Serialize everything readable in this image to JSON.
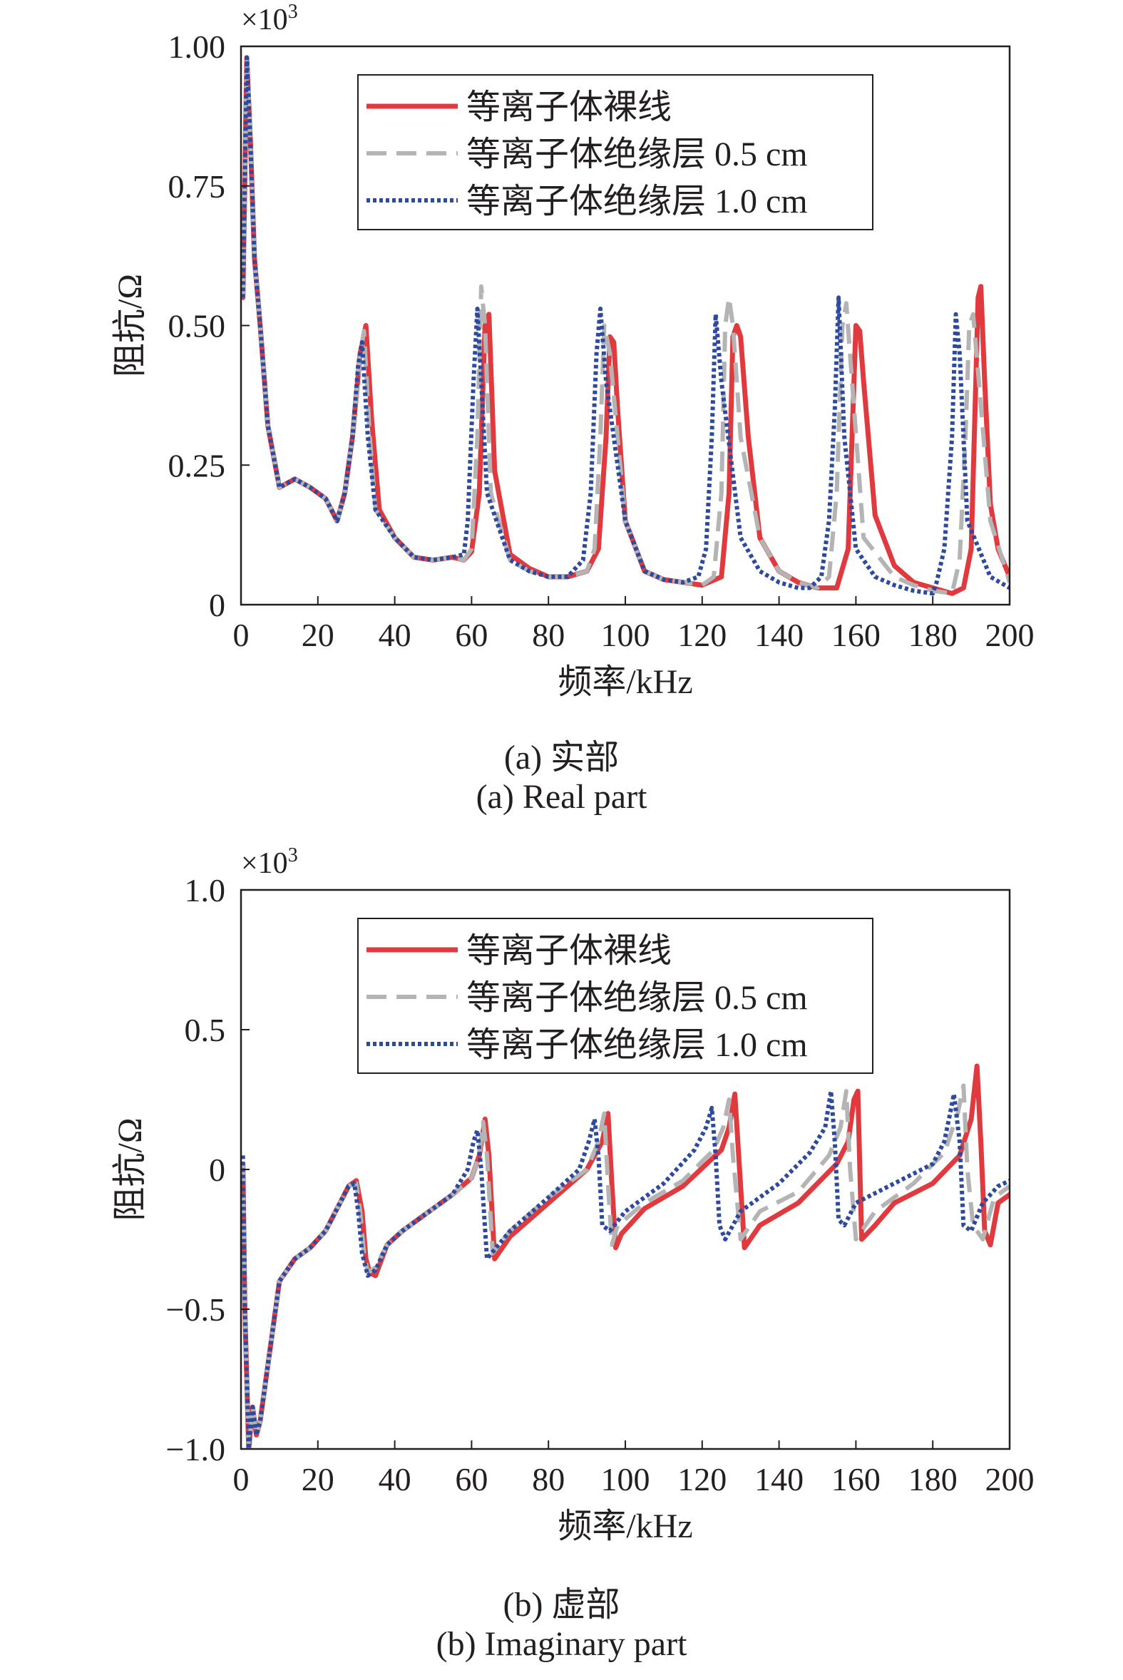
{
  "chart_data": [
    {
      "type": "line",
      "panel": "a",
      "caption_zh": "(a) 实部",
      "caption_en": "(a) Real part",
      "xlabel": "频率/kHz",
      "ylabel": "阻抗/Ω",
      "scale_label": "×10",
      "scale_exp": "3",
      "xlim": [
        0,
        200
      ],
      "ylim": [
        0,
        1.0
      ],
      "xticks": [
        "0",
        "20",
        "40",
        "60",
        "80",
        "100",
        "120",
        "140",
        "160",
        "180",
        "200"
      ],
      "yticks": [
        {
          "v": 1.0,
          "label": "1.00"
        },
        {
          "v": 0.75,
          "label": "0.75"
        },
        {
          "v": 0.5,
          "label": "0.50"
        },
        {
          "v": 0.25,
          "label": "0.25"
        },
        {
          "v": 0,
          "label": "0"
        }
      ],
      "legend_position": "top-right",
      "series": [
        {
          "name": "等离子体裸线",
          "color": "#e03a3e",
          "style": "solid",
          "x": [
            0.5,
            1.5,
            2.5,
            3.5,
            5,
            7,
            10,
            14,
            18,
            22,
            25,
            27,
            29,
            31,
            32.5,
            34,
            36,
            40,
            45,
            50,
            55,
            58,
            60,
            62,
            63.5,
            64.5,
            66,
            70,
            75,
            80,
            85,
            90,
            93,
            95,
            96,
            97,
            98,
            100,
            105,
            110,
            115,
            120,
            125,
            127,
            128,
            129,
            130,
            132,
            135,
            140,
            145,
            150,
            155,
            158,
            159,
            160,
            161,
            162,
            165,
            170,
            175,
            180,
            185,
            188,
            190,
            191,
            191.8,
            192.5,
            193.5,
            195,
            197,
            200
          ],
          "y": [
            0.55,
            0.98,
            0.82,
            0.62,
            0.5,
            0.32,
            0.21,
            0.225,
            0.21,
            0.19,
            0.15,
            0.2,
            0.3,
            0.45,
            0.5,
            0.33,
            0.17,
            0.12,
            0.085,
            0.08,
            0.085,
            0.08,
            0.095,
            0.2,
            0.5,
            0.52,
            0.24,
            0.09,
            0.065,
            0.05,
            0.05,
            0.06,
            0.1,
            0.3,
            0.48,
            0.47,
            0.35,
            0.15,
            0.06,
            0.045,
            0.04,
            0.035,
            0.05,
            0.2,
            0.48,
            0.5,
            0.48,
            0.3,
            0.12,
            0.06,
            0.04,
            0.03,
            0.03,
            0.1,
            0.3,
            0.5,
            0.49,
            0.4,
            0.16,
            0.07,
            0.04,
            0.03,
            0.02,
            0.03,
            0.1,
            0.35,
            0.55,
            0.57,
            0.4,
            0.18,
            0.1,
            0.05
          ]
        },
        {
          "name": "等离子体绝缘层 0.5 cm",
          "color": "#b4b4b4",
          "style": "dashed",
          "x": [
            0.5,
            1.5,
            2.5,
            3.5,
            5,
            7,
            10,
            14,
            18,
            22,
            25,
            27,
            29,
            31,
            32,
            33.5,
            35,
            40,
            45,
            50,
            55,
            58,
            60,
            61.5,
            62.5,
            63.5,
            65,
            70,
            75,
            80,
            85,
            90,
            92,
            93.5,
            94.5,
            96,
            100,
            105,
            110,
            115,
            120,
            123,
            125,
            126,
            127,
            128,
            130,
            135,
            140,
            145,
            150,
            153,
            155,
            156.5,
            157.5,
            159,
            162,
            170,
            175,
            180,
            185,
            187,
            188.5,
            189.5,
            190.5,
            192,
            195,
            200
          ],
          "y": [
            0.55,
            0.98,
            0.82,
            0.62,
            0.5,
            0.32,
            0.21,
            0.225,
            0.21,
            0.19,
            0.15,
            0.2,
            0.3,
            0.45,
            0.49,
            0.3,
            0.17,
            0.12,
            0.085,
            0.08,
            0.085,
            0.08,
            0.1,
            0.3,
            0.57,
            0.5,
            0.2,
            0.08,
            0.06,
            0.05,
            0.05,
            0.06,
            0.1,
            0.3,
            0.5,
            0.45,
            0.15,
            0.06,
            0.045,
            0.04,
            0.035,
            0.05,
            0.2,
            0.5,
            0.55,
            0.5,
            0.3,
            0.12,
            0.06,
            0.04,
            0.03,
            0.05,
            0.2,
            0.5,
            0.54,
            0.4,
            0.12,
            0.05,
            0.035,
            0.025,
            0.02,
            0.08,
            0.3,
            0.5,
            0.52,
            0.4,
            0.15,
            0.04
          ]
        },
        {
          "name": "等离子体绝缘层 1.0 cm",
          "color": "#2e4a9e",
          "style": "dotted",
          "x": [
            0.5,
            1.5,
            2.5,
            3.5,
            5,
            7,
            10,
            14,
            18,
            22,
            25,
            27,
            29,
            30.5,
            31.5,
            33,
            35,
            40,
            45,
            50,
            55,
            58,
            59,
            60.5,
            61.5,
            62.5,
            64,
            70,
            75,
            80,
            85,
            89,
            91,
            92.5,
            93.5,
            95,
            100,
            105,
            110,
            115,
            119,
            121,
            122.5,
            123.5,
            125,
            130,
            135,
            140,
            145,
            148,
            151,
            153,
            154.5,
            155.5,
            157,
            160,
            165,
            170,
            175,
            180,
            181,
            183,
            185,
            186,
            187,
            189,
            195,
            200
          ],
          "y": [
            0.55,
            0.98,
            0.82,
            0.62,
            0.5,
            0.32,
            0.21,
            0.225,
            0.21,
            0.19,
            0.15,
            0.2,
            0.3,
            0.43,
            0.47,
            0.3,
            0.17,
            0.12,
            0.085,
            0.08,
            0.085,
            0.09,
            0.15,
            0.4,
            0.53,
            0.4,
            0.2,
            0.08,
            0.06,
            0.05,
            0.05,
            0.08,
            0.2,
            0.45,
            0.53,
            0.4,
            0.15,
            0.06,
            0.045,
            0.04,
            0.05,
            0.1,
            0.3,
            0.52,
            0.4,
            0.12,
            0.06,
            0.04,
            0.03,
            0.03,
            0.05,
            0.15,
            0.35,
            0.55,
            0.3,
            0.1,
            0.05,
            0.035,
            0.025,
            0.02,
            0.04,
            0.1,
            0.3,
            0.52,
            0.45,
            0.15,
            0.05,
            0.03
          ]
        }
      ]
    },
    {
      "type": "line",
      "panel": "b",
      "caption_zh": "(b) 虚部",
      "caption_en": "(b) Imaginary part",
      "xlabel": "频率/kHz",
      "ylabel": "阻抗/Ω",
      "scale_label": "×10",
      "scale_exp": "3",
      "xlim": [
        0,
        200
      ],
      "ylim": [
        -1.0,
        1.0
      ],
      "xticks": [
        "0",
        "20",
        "40",
        "60",
        "80",
        "100",
        "120",
        "140",
        "160",
        "180",
        "200"
      ],
      "yticks": [
        {
          "v": 1.0,
          "label": "1.0"
        },
        {
          "v": 0.5,
          "label": "0.5"
        },
        {
          "v": 0,
          "label": "0"
        },
        {
          "v": -0.5,
          "label": "−0.5"
        },
        {
          "v": -1.0,
          "label": "−1.0"
        }
      ],
      "legend_position": "top-right",
      "series": [
        {
          "name": "等离子体裸线",
          "color": "#e03a3e",
          "style": "solid",
          "x": [
            0.5,
            1,
            2,
            3,
            4,
            5,
            7,
            10,
            14,
            18,
            22,
            25,
            28,
            30,
            31.5,
            32.5,
            33.5,
            35,
            38,
            42,
            48,
            55,
            60,
            62,
            63.5,
            64.5,
            66,
            70,
            80,
            90,
            94,
            95.5,
            96.5,
            97.5,
            99,
            105,
            115,
            125,
            127,
            128.5,
            129.5,
            131,
            135,
            145,
            155,
            158,
            159.5,
            160.5,
            161.5,
            165,
            170,
            180,
            187,
            190,
            191.5,
            192.5,
            193.5,
            195,
            197,
            200
          ],
          "y": [
            0.02,
            -0.5,
            -1.0,
            -0.85,
            -0.95,
            -0.9,
            -0.7,
            -0.4,
            -0.32,
            -0.28,
            -0.22,
            -0.14,
            -0.06,
            -0.04,
            -0.15,
            -0.32,
            -0.37,
            -0.38,
            -0.27,
            -0.22,
            -0.16,
            -0.09,
            -0.03,
            0.05,
            0.18,
            0.05,
            -0.32,
            -0.24,
            -0.12,
            0.0,
            0.1,
            0.2,
            -0.05,
            -0.28,
            -0.23,
            -0.14,
            -0.06,
            0.07,
            0.15,
            0.27,
            0.05,
            -0.28,
            -0.2,
            -0.12,
            0.02,
            0.1,
            0.25,
            0.28,
            -0.25,
            -0.2,
            -0.12,
            -0.05,
            0.05,
            0.18,
            0.37,
            0.1,
            -0.22,
            -0.27,
            -0.12,
            -0.09
          ]
        },
        {
          "name": "等离子体绝缘层 0.5 cm",
          "color": "#b4b4b4",
          "style": "dashed",
          "x": [
            0.5,
            1,
            2,
            3,
            4,
            5,
            7,
            10,
            14,
            18,
            22,
            25,
            28,
            30,
            31,
            32,
            33,
            35,
            38,
            42,
            48,
            55,
            60,
            62,
            63,
            64,
            65.5,
            70,
            80,
            90,
            93,
            94.5,
            95.5,
            96.5,
            98,
            105,
            115,
            123,
            125.5,
            127,
            128,
            130,
            135,
            145,
            153,
            156,
            157.5,
            158.5,
            160,
            165,
            175,
            183,
            186.5,
            188,
            189,
            190.5,
            193,
            196,
            200
          ],
          "y": [
            0.02,
            -0.5,
            -1.0,
            -0.85,
            -0.95,
            -0.9,
            -0.7,
            -0.4,
            -0.32,
            -0.28,
            -0.22,
            -0.14,
            -0.06,
            -0.05,
            -0.15,
            -0.3,
            -0.37,
            -0.35,
            -0.27,
            -0.22,
            -0.16,
            -0.09,
            -0.03,
            0.05,
            0.17,
            0.05,
            -0.3,
            -0.22,
            -0.1,
            0.0,
            0.1,
            0.2,
            -0.05,
            -0.27,
            -0.2,
            -0.12,
            -0.04,
            0.07,
            0.15,
            0.25,
            0.05,
            -0.25,
            -0.15,
            -0.08,
            0.05,
            0.15,
            0.28,
            0.0,
            -0.25,
            -0.15,
            -0.05,
            0.06,
            0.2,
            0.3,
            0.0,
            -0.2,
            -0.25,
            -0.1,
            -0.06
          ]
        },
        {
          "name": "等离子体绝缘层 1.0 cm",
          "color": "#2e4a9e",
          "style": "dotted",
          "x": [
            0.5,
            1,
            2,
            3,
            4,
            5,
            7,
            10,
            14,
            18,
            22,
            25,
            28,
            29.5,
            30.5,
            31.5,
            33,
            35,
            38,
            42,
            48,
            55,
            59,
            60.5,
            61.5,
            62.5,
            64,
            70,
            80,
            88,
            90.5,
            92,
            93,
            94,
            96,
            100,
            110,
            118,
            121,
            122.5,
            123.5,
            124.5,
            126,
            130,
            140,
            148,
            152,
            153.5,
            154.5,
            155.5,
            157,
            160,
            170,
            180,
            183,
            184.5,
            185.5,
            187,
            188,
            190,
            193,
            197,
            200
          ],
          "y": [
            0.05,
            -0.5,
            -1.0,
            -0.85,
            -0.95,
            -0.9,
            -0.7,
            -0.4,
            -0.32,
            -0.28,
            -0.22,
            -0.14,
            -0.06,
            -0.05,
            -0.15,
            -0.3,
            -0.38,
            -0.36,
            -0.27,
            -0.22,
            -0.16,
            -0.09,
            0.0,
            0.1,
            0.14,
            0.0,
            -0.32,
            -0.22,
            -0.1,
            0.0,
            0.1,
            0.18,
            0.05,
            -0.2,
            -0.22,
            -0.15,
            -0.05,
            0.07,
            0.15,
            0.22,
            0.05,
            -0.2,
            -0.25,
            -0.15,
            -0.05,
            0.06,
            0.15,
            0.28,
            0.1,
            -0.18,
            -0.2,
            -0.12,
            -0.05,
            0.02,
            0.1,
            0.2,
            0.27,
            0.1,
            -0.2,
            -0.22,
            -0.12,
            -0.06,
            -0.04
          ]
        }
      ]
    }
  ]
}
